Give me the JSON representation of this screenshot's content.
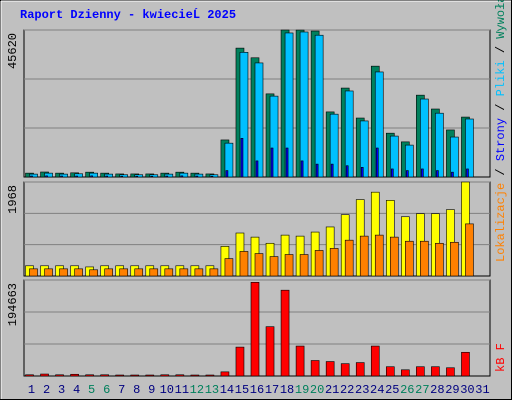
{
  "legend_separator": " / ",
  "chart_data": [
    {
      "type": "bar",
      "title": "Raport Dzienny -  kwiecieĹ  2025",
      "ylim": [
        0,
        45620
      ],
      "yticks": [
        45620
      ],
      "series": [
        {
          "name": "Wywołania",
          "color": "#00805c",
          "values": [
            1200,
            1550,
            1200,
            1300,
            1500,
            1200,
            950,
            950,
            950,
            1200,
            1500,
            1200,
            950,
            11500,
            40000,
            37000,
            25800,
            45620,
            45600,
            45300,
            20200,
            27600,
            18300,
            34400,
            13600,
            10900,
            25400,
            21100,
            14600,
            18600,
            null
          ]
        },
        {
          "name": "Pliki",
          "color": "#00c0ff",
          "values": [
            900,
            1200,
            900,
            1000,
            1200,
            900,
            700,
            700,
            700,
            900,
            1200,
            900,
            700,
            10500,
            38700,
            35400,
            25100,
            44700,
            45000,
            44000,
            19500,
            26700,
            17400,
            32600,
            12700,
            9900,
            24200,
            19800,
            12400,
            18000,
            null
          ]
        },
        {
          "name": "Strony",
          "color": "#0000ff",
          "values": [
            300,
            350,
            300,
            300,
            350,
            300,
            250,
            250,
            250,
            300,
            350,
            300,
            250,
            2000,
            12000,
            5000,
            9000,
            9000,
            5000,
            4000,
            4000,
            3500,
            3000,
            9000,
            2500,
            2000,
            2500,
            2000,
            1500,
            2500,
            null
          ]
        }
      ]
    },
    {
      "type": "bar",
      "ylim": [
        0,
        1968
      ],
      "yticks": [
        1968
      ],
      "series": [
        {
          "color": "#ffff00",
          "values": [
            214,
            214,
            214,
            214,
            190,
            214,
            214,
            214,
            214,
            214,
            214,
            214,
            214,
            620,
            900,
            814,
            685,
            856,
            835,
            920,
            1027,
            1284,
            1600,
            1755,
            1584,
            1241,
            1305,
            1305,
            1390,
            1968,
            null
          ]
        },
        {
          "name": "Lokalizacje",
          "color": "#ff8000",
          "values": [
            150,
            150,
            150,
            150,
            130,
            150,
            150,
            150,
            150,
            150,
            150,
            150,
            150,
            364,
            514,
            470,
            407,
            450,
            450,
            535,
            578,
            750,
            835,
            856,
            814,
            728,
            728,
            685,
            706,
            1091,
            null
          ]
        }
      ]
    },
    {
      "type": "bar",
      "ylim": [
        0,
        194663
      ],
      "yticks": [
        194663
      ],
      "categories": [
        "1",
        "2",
        "3",
        "4",
        "5",
        "6",
        "7",
        "8",
        "9",
        "10",
        "11",
        "12",
        "13",
        "14",
        "15",
        "16",
        "17",
        "18",
        "19",
        "20",
        "21",
        "22",
        "23",
        "24",
        "25",
        "26",
        "27",
        "28",
        "29",
        "30",
        "31"
      ],
      "category_colors": [
        "#000080",
        "#000080",
        "#000080",
        "#000080",
        "#00805c",
        "#00805c",
        "#000080",
        "#000080",
        "#000080",
        "#000080",
        "#000080",
        "#00805c",
        "#00805c",
        "#000080",
        "#000080",
        "#000080",
        "#000080",
        "#000080",
        "#00805c",
        "#00805c",
        "#000080",
        "#000080",
        "#000080",
        "#000080",
        "#000080",
        "#00805c",
        "#00805c",
        "#000080",
        "#000080",
        "#000080",
        "#000080"
      ],
      "series": [
        {
          "name": "kB F",
          "color": "#ff0000",
          "values": [
            2500,
            4000,
            2500,
            3500,
            2500,
            2500,
            2000,
            2000,
            2000,
            2500,
            2500,
            2000,
            2000,
            8400,
            58600,
            190000,
            100000,
            174000,
            60700,
            31400,
            29300,
            25000,
            27200,
            60700,
            18800,
            12600,
            18800,
            18800,
            16700,
            48100,
            null
          ]
        }
      ]
    }
  ]
}
